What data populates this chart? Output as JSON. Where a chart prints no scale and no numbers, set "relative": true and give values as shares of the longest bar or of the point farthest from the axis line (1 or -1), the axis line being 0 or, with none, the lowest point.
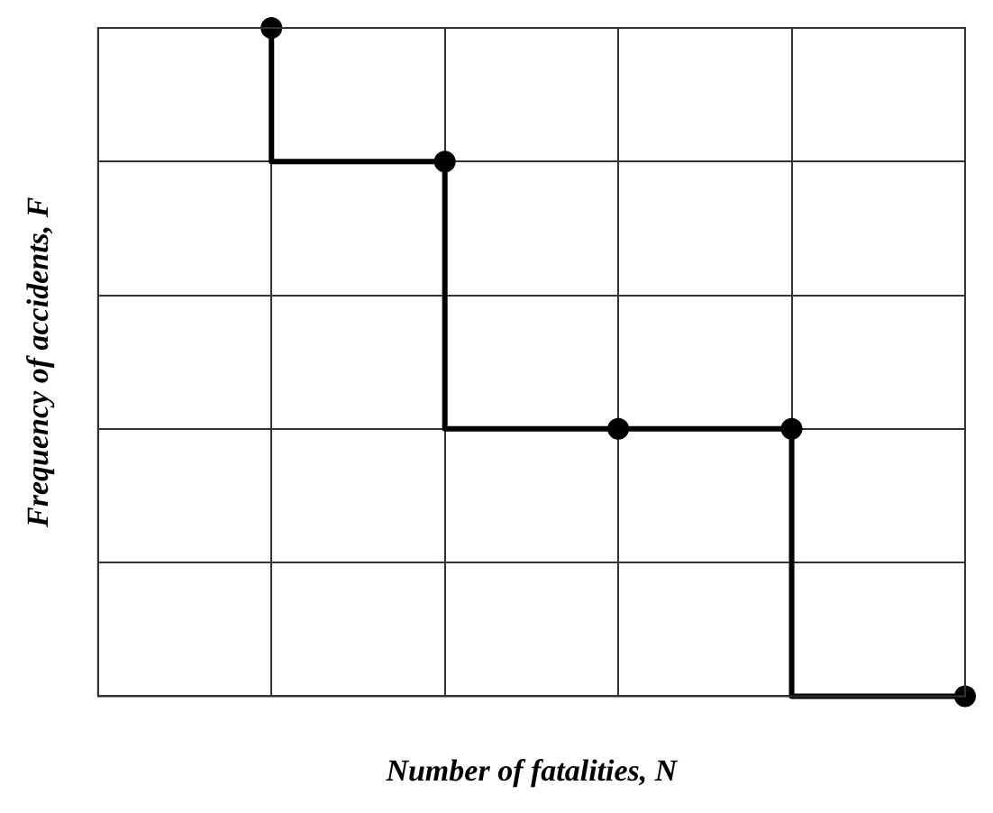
{
  "chart_data": {
    "type": "step",
    "relative": true,
    "xlabel": "Number of fatalities, N",
    "ylabel": "Frequency of accidents, F",
    "categories": [
      null,
      null,
      null,
      null,
      null,
      null
    ],
    "series": [
      {
        "color": "#000000",
        "values": [
          null,
          1,
          0.8,
          0.4,
          0.4,
          0
        ]
      }
    ],
    "marker": "circle",
    "line_style": "solid",
    "grid": true,
    "legend": false
  }
}
